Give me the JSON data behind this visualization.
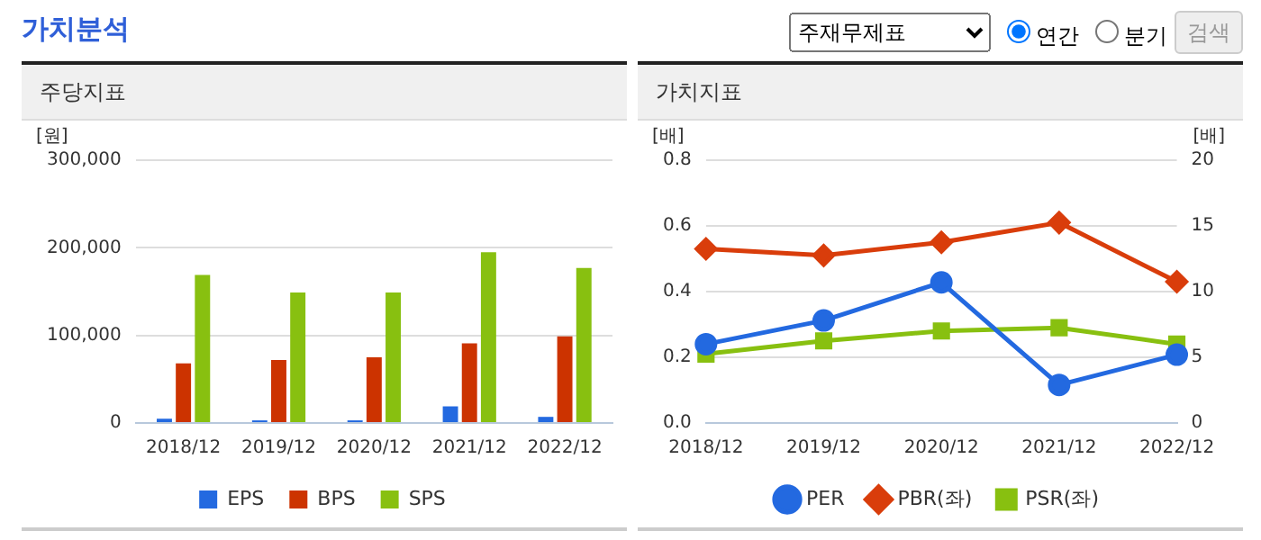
{
  "chart_data": [
    {
      "type": "other",
      "title": "가치분석",
      "annotations": [
        "주재무제표",
        "연간",
        "분기",
        "검색"
      ]
    },
    {
      "type": "bar",
      "title": "주당지표",
      "ylabel": "[원]",
      "categories": [
        "2018/12",
        "2019/12",
        "2020/12",
        "2021/12",
        "2022/12"
      ],
      "series": [
        {
          "name": "EPS",
          "color": "#2369e0",
          "values": [
            5000,
            3000,
            3000,
            19000,
            7000
          ]
        },
        {
          "name": "BPS",
          "color": "#cc3300",
          "values": [
            68000,
            72000,
            75000,
            91000,
            99000
          ]
        },
        {
          "name": "SPS",
          "color": "#88c010",
          "values": [
            169000,
            149000,
            149000,
            195000,
            177000
          ]
        }
      ],
      "ylim": [
        0,
        300000
      ],
      "yticks": [
        {
          "value": 0,
          "label": "0"
        },
        {
          "value": 100000,
          "label": "100,000"
        },
        {
          "value": 200000,
          "label": "200,000"
        },
        {
          "value": 300000,
          "label": "300,000"
        }
      ],
      "grid": "y",
      "legend": "bottom"
    },
    {
      "type": "line",
      "title": "가치지표",
      "ylabel": "[배]",
      "y2label": "[배]",
      "categories": [
        "2018/12",
        "2019/12",
        "2020/12",
        "2021/12",
        "2022/12"
      ],
      "series": [
        {
          "name": "PER",
          "color": "#2369e0",
          "axis": "y2",
          "marker": "circle",
          "values": [
            6.0,
            7.8,
            10.7,
            2.9,
            5.2
          ]
        },
        {
          "name": "PBR(좌)",
          "color": "#d93d0b",
          "marker": "diamond",
          "values": [
            0.53,
            0.51,
            0.55,
            0.61,
            0.43
          ]
        },
        {
          "name": "PSR(좌)",
          "color": "#88c010",
          "marker": "square",
          "values": [
            0.21,
            0.25,
            0.28,
            0.29,
            0.24
          ]
        }
      ],
      "ylim": [
        0,
        0.8
      ],
      "yticks": [
        {
          "value": 0,
          "label": "0.0"
        },
        {
          "value": 0.2,
          "label": "0.2"
        },
        {
          "value": 0.4,
          "label": "0.4"
        },
        {
          "value": 0.6,
          "label": "0.6"
        },
        {
          "value": 0.8,
          "label": "0.8"
        }
      ],
      "y2lim": [
        0,
        20
      ],
      "y2ticks": [
        0,
        5,
        10,
        15,
        20
      ],
      "grid": "y",
      "legend": "bottom"
    }
  ]
}
